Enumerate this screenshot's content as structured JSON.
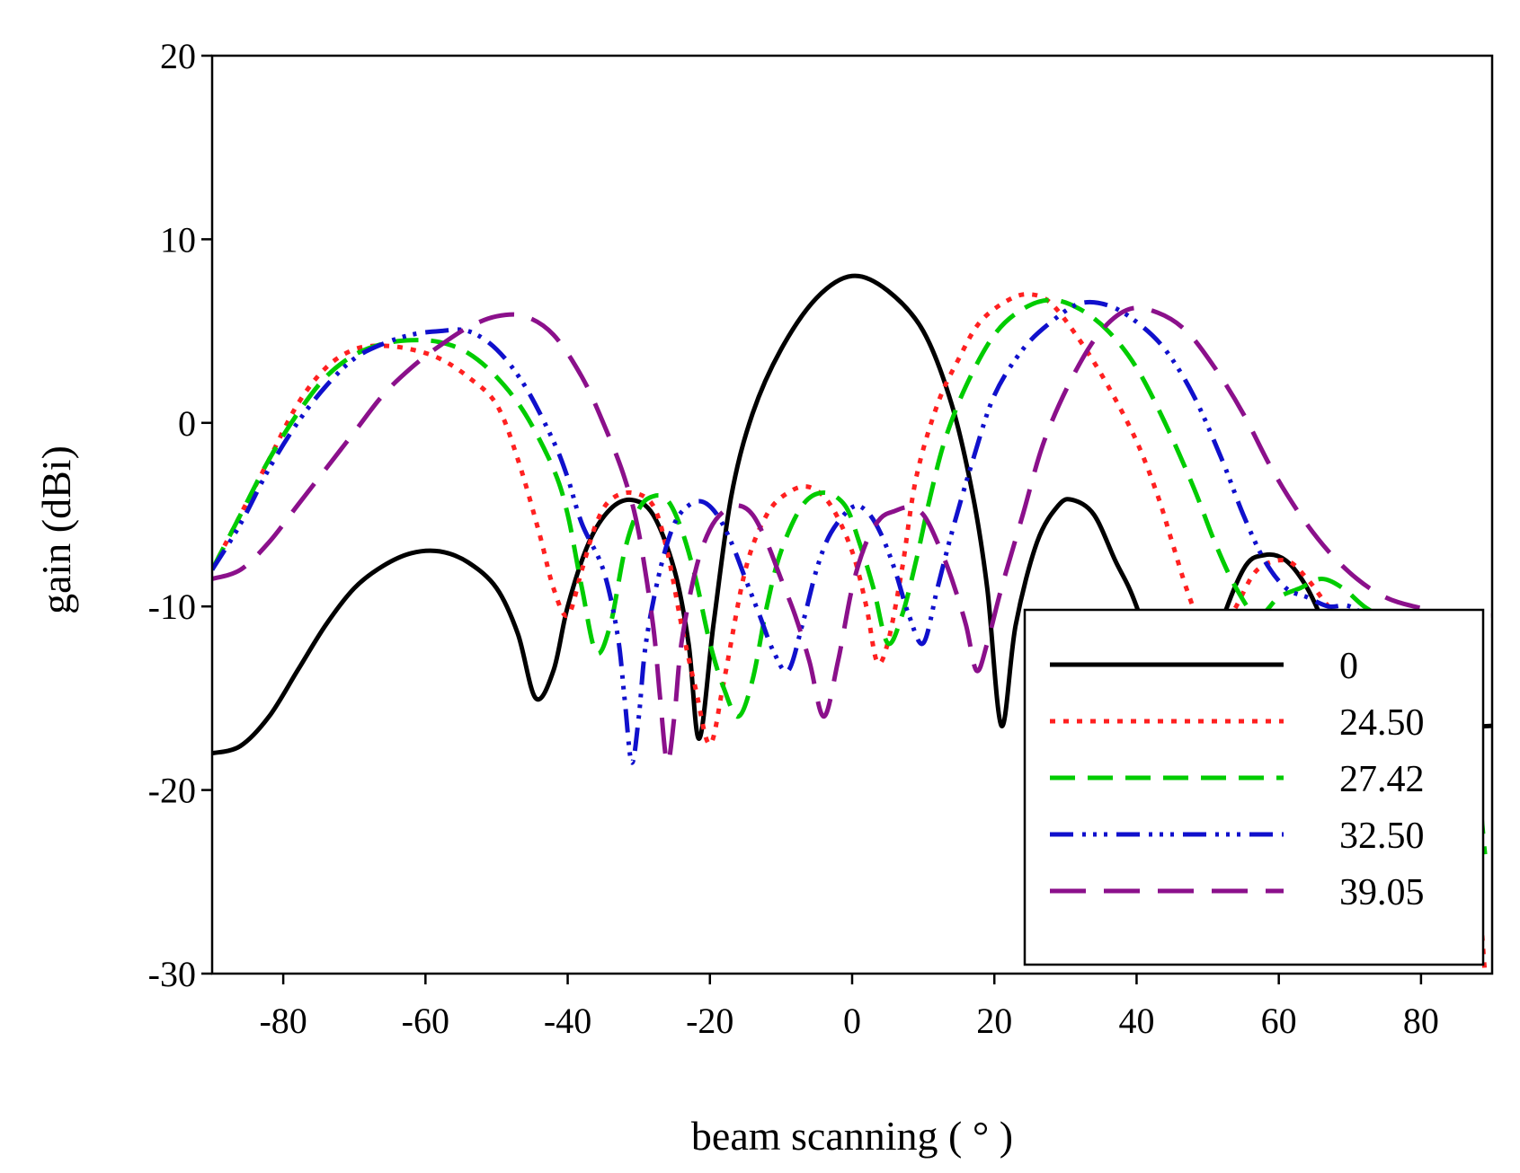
{
  "chart_data": {
    "type": "line",
    "xlabel": "beam scanning ( ° )",
    "ylabel": "gain (dBi)",
    "xlim": [
      -90,
      90
    ],
    "ylim": [
      -30,
      20
    ],
    "xticks": [
      -80,
      -60,
      -40,
      -20,
      0,
      20,
      40,
      60,
      80
    ],
    "yticks": [
      20,
      10,
      0,
      -10,
      -20,
      -30
    ],
    "grid": false,
    "legend_position": "bottom-right",
    "series": [
      {
        "name": "0",
        "color": "#000000",
        "style": "solid",
        "points": [
          [
            -90,
            -18
          ],
          [
            -86,
            -17.6
          ],
          [
            -82,
            -16
          ],
          [
            -78,
            -13.5
          ],
          [
            -74,
            -11
          ],
          [
            -70,
            -9
          ],
          [
            -66,
            -7.8
          ],
          [
            -62,
            -7.1
          ],
          [
            -58,
            -7
          ],
          [
            -54,
            -7.6
          ],
          [
            -50,
            -9
          ],
          [
            -47,
            -11.5
          ],
          [
            -44.5,
            -15
          ],
          [
            -42,
            -13.5
          ],
          [
            -40,
            -10
          ],
          [
            -37,
            -6.5
          ],
          [
            -34,
            -4.7
          ],
          [
            -31,
            -4.2
          ],
          [
            -28,
            -5
          ],
          [
            -25,
            -8
          ],
          [
            -23,
            -12
          ],
          [
            -21.5,
            -17.2
          ],
          [
            -19.5,
            -11
          ],
          [
            -17,
            -4
          ],
          [
            -14,
            0.5
          ],
          [
            -10,
            4
          ],
          [
            -5,
            6.8
          ],
          [
            0,
            8
          ],
          [
            5,
            7.2
          ],
          [
            10,
            5
          ],
          [
            14,
            1
          ],
          [
            17,
            -4
          ],
          [
            19,
            -9
          ],
          [
            21,
            -16.5
          ],
          [
            23,
            -11
          ],
          [
            26,
            -6.5
          ],
          [
            29,
            -4.5
          ],
          [
            31,
            -4.2
          ],
          [
            34,
            -5
          ],
          [
            37,
            -7.5
          ],
          [
            40,
            -10
          ],
          [
            45,
            -16
          ],
          [
            48,
            -17
          ],
          [
            51,
            -12
          ],
          [
            55,
            -8
          ],
          [
            58,
            -7.2
          ],
          [
            61,
            -7.5
          ],
          [
            64,
            -9
          ],
          [
            67,
            -11.5
          ],
          [
            70,
            -14
          ],
          [
            74,
            -16.5
          ],
          [
            78,
            -17
          ],
          [
            82,
            -16.7
          ],
          [
            86,
            -16.6
          ],
          [
            90,
            -16.5
          ]
        ]
      },
      {
        "name": "24.50",
        "color": "#ff2020",
        "style": "dotted",
        "points": [
          [
            -90,
            -8
          ],
          [
            -86,
            -5
          ],
          [
            -82,
            -2
          ],
          [
            -78,
            1
          ],
          [
            -74,
            3
          ],
          [
            -70,
            4
          ],
          [
            -66,
            4.2
          ],
          [
            -62,
            4
          ],
          [
            -58,
            3.5
          ],
          [
            -54,
            2.5
          ],
          [
            -50,
            1
          ],
          [
            -47,
            -2
          ],
          [
            -44,
            -6
          ],
          [
            -42,
            -9
          ],
          [
            -40,
            -10.5
          ],
          [
            -38,
            -8
          ],
          [
            -36,
            -5.5
          ],
          [
            -34,
            -4.2
          ],
          [
            -31,
            -3.8
          ],
          [
            -28,
            -4.5
          ],
          [
            -26,
            -7
          ],
          [
            -24,
            -11
          ],
          [
            -22,
            -14.5
          ],
          [
            -20,
            -17.5
          ],
          [
            -18,
            -14
          ],
          [
            -15,
            -8
          ],
          [
            -12,
            -5
          ],
          [
            -9,
            -3.8
          ],
          [
            -6,
            -3.5
          ],
          [
            -3,
            -4.5
          ],
          [
            0,
            -7
          ],
          [
            2,
            -10
          ],
          [
            3.5,
            -13
          ],
          [
            5,
            -12
          ],
          [
            7,
            -8
          ],
          [
            9,
            -3
          ],
          [
            12,
            1
          ],
          [
            15,
            3.5
          ],
          [
            18,
            5.5
          ],
          [
            22,
            6.7
          ],
          [
            25,
            7
          ],
          [
            28,
            6.5
          ],
          [
            32,
            4.5
          ],
          [
            36,
            2
          ],
          [
            40,
            -1
          ],
          [
            43,
            -4
          ],
          [
            45,
            -6.5
          ],
          [
            47,
            -9
          ],
          [
            49,
            -11
          ],
          [
            51,
            -12
          ],
          [
            54,
            -10
          ],
          [
            57,
            -8
          ],
          [
            61,
            -7.5
          ],
          [
            64,
            -8.5
          ],
          [
            67,
            -10
          ],
          [
            70,
            -11
          ],
          [
            74,
            -12.5
          ],
          [
            78,
            -14
          ],
          [
            82,
            -15
          ],
          [
            86,
            -16.5
          ],
          [
            89,
            -30
          ]
        ]
      },
      {
        "name": "27.42",
        "color": "#00cc00",
        "style": "dashed",
        "points": [
          [
            -90,
            -8
          ],
          [
            -86,
            -5
          ],
          [
            -82,
            -2
          ],
          [
            -78,
            0.5
          ],
          [
            -74,
            2.5
          ],
          [
            -70,
            3.7
          ],
          [
            -66,
            4.3
          ],
          [
            -62,
            4.5
          ],
          [
            -58,
            4.4
          ],
          [
            -54,
            3.8
          ],
          [
            -50,
            2.5
          ],
          [
            -46,
            0.5
          ],
          [
            -42,
            -2.5
          ],
          [
            -40,
            -5
          ],
          [
            -38,
            -9
          ],
          [
            -36,
            -12.5
          ],
          [
            -34,
            -11
          ],
          [
            -32,
            -7
          ],
          [
            -30,
            -4.7
          ],
          [
            -28,
            -4
          ],
          [
            -26,
            -4.2
          ],
          [
            -24,
            -5.8
          ],
          [
            -22,
            -8.5
          ],
          [
            -20,
            -12
          ],
          [
            -18,
            -14.5
          ],
          [
            -16,
            -16
          ],
          [
            -14,
            -14
          ],
          [
            -12,
            -10
          ],
          [
            -10,
            -7
          ],
          [
            -7,
            -4.5
          ],
          [
            -4,
            -3.8
          ],
          [
            -1,
            -4.5
          ],
          [
            1,
            -6.5
          ],
          [
            3,
            -9
          ],
          [
            5,
            -12
          ],
          [
            7,
            -10.5
          ],
          [
            9,
            -7.5
          ],
          [
            11,
            -4
          ],
          [
            13,
            -1
          ],
          [
            16,
            2
          ],
          [
            20,
            4.8
          ],
          [
            24,
            6.2
          ],
          [
            28,
            6.7
          ],
          [
            32,
            6.2
          ],
          [
            36,
            5
          ],
          [
            40,
            3
          ],
          [
            44,
            0
          ],
          [
            48,
            -3.5
          ],
          [
            51,
            -6.5
          ],
          [
            54,
            -9
          ],
          [
            57,
            -10.5
          ],
          [
            60,
            -9.5
          ],
          [
            63,
            -9
          ],
          [
            66,
            -8.5
          ],
          [
            69,
            -9
          ],
          [
            72,
            -10
          ],
          [
            76,
            -11
          ],
          [
            80,
            -12.5
          ],
          [
            84,
            -14.5
          ],
          [
            87,
            -16.5
          ],
          [
            89,
            -23.5
          ]
        ]
      },
      {
        "name": "32.50",
        "color": "#1010cc",
        "style": "dash-dot",
        "points": [
          [
            -90,
            -8
          ],
          [
            -86,
            -5.5
          ],
          [
            -82,
            -2.5
          ],
          [
            -78,
            0
          ],
          [
            -74,
            2
          ],
          [
            -70,
            3.5
          ],
          [
            -66,
            4.3
          ],
          [
            -62,
            4.8
          ],
          [
            -58,
            5
          ],
          [
            -54,
            5
          ],
          [
            -50,
            4
          ],
          [
            -46,
            2
          ],
          [
            -42,
            -1
          ],
          [
            -40,
            -3
          ],
          [
            -38,
            -5.5
          ],
          [
            -35,
            -8
          ],
          [
            -33,
            -11.5
          ],
          [
            -32,
            -15
          ],
          [
            -31,
            -18.5
          ],
          [
            -30,
            -16
          ],
          [
            -29,
            -12
          ],
          [
            -27,
            -8
          ],
          [
            -25,
            -5.5
          ],
          [
            -23,
            -4.5
          ],
          [
            -21,
            -4.3
          ],
          [
            -19,
            -5
          ],
          [
            -17,
            -6.5
          ],
          [
            -15,
            -8.5
          ],
          [
            -13,
            -10.5
          ],
          [
            -11,
            -12.5
          ],
          [
            -9,
            -13.5
          ],
          [
            -7,
            -11
          ],
          [
            -5,
            -8
          ],
          [
            -3,
            -6
          ],
          [
            0,
            -4.6
          ],
          [
            2,
            -4.8
          ],
          [
            4,
            -6
          ],
          [
            6,
            -8
          ],
          [
            8,
            -10.5
          ],
          [
            10,
            -12
          ],
          [
            12,
            -9
          ],
          [
            14,
            -6
          ],
          [
            17,
            -2
          ],
          [
            20,
            1.5
          ],
          [
            24,
            4
          ],
          [
            28,
            5.5
          ],
          [
            32,
            6.5
          ],
          [
            36,
            6.4
          ],
          [
            40,
            5.5
          ],
          [
            44,
            4
          ],
          [
            48,
            1.5
          ],
          [
            52,
            -2
          ],
          [
            55,
            -5
          ],
          [
            58,
            -7.5
          ],
          [
            61,
            -9
          ],
          [
            64,
            -9.5
          ],
          [
            67,
            -10
          ],
          [
            70,
            -10
          ],
          [
            74,
            -11
          ],
          [
            78,
            -12
          ],
          [
            82,
            -13
          ],
          [
            86,
            -14
          ],
          [
            89,
            -14.5
          ]
        ]
      },
      {
        "name": "39.05",
        "color": "#8b108b",
        "style": "long-dash",
        "points": [
          [
            -90,
            -8.5
          ],
          [
            -86,
            -8
          ],
          [
            -82,
            -6.5
          ],
          [
            -78,
            -4.5
          ],
          [
            -74,
            -2.5
          ],
          [
            -70,
            -0.5
          ],
          [
            -66,
            1.5
          ],
          [
            -62,
            3
          ],
          [
            -58,
            4.2
          ],
          [
            -54,
            5.2
          ],
          [
            -50,
            5.8
          ],
          [
            -46,
            5.8
          ],
          [
            -42,
            4.8
          ],
          [
            -38,
            2.5
          ],
          [
            -35,
            0
          ],
          [
            -32,
            -3
          ],
          [
            -30,
            -6
          ],
          [
            -28,
            -11
          ],
          [
            -27,
            -15
          ],
          [
            -26,
            -18.5
          ],
          [
            -25,
            -16
          ],
          [
            -24,
            -12
          ],
          [
            -22,
            -8
          ],
          [
            -20,
            -5.8
          ],
          [
            -18,
            -4.8
          ],
          [
            -16,
            -4.5
          ],
          [
            -14,
            -5
          ],
          [
            -12,
            -6.5
          ],
          [
            -10,
            -8.5
          ],
          [
            -8,
            -10.5
          ],
          [
            -6,
            -13
          ],
          [
            -4,
            -16
          ],
          [
            -2,
            -13
          ],
          [
            0,
            -9
          ],
          [
            2,
            -6.5
          ],
          [
            4,
            -5.2
          ],
          [
            6,
            -4.8
          ],
          [
            8,
            -4.6
          ],
          [
            10,
            -5
          ],
          [
            12,
            -6.5
          ],
          [
            14,
            -8.5
          ],
          [
            16,
            -11
          ],
          [
            17.5,
            -13.5
          ],
          [
            19,
            -12
          ],
          [
            21,
            -9
          ],
          [
            24,
            -5
          ],
          [
            27,
            -1
          ],
          [
            31,
            2.5
          ],
          [
            35,
            5
          ],
          [
            39,
            6.2
          ],
          [
            43,
            6
          ],
          [
            47,
            5
          ],
          [
            51,
            3
          ],
          [
            55,
            0.5
          ],
          [
            59,
            -2.5
          ],
          [
            63,
            -5
          ],
          [
            67,
            -7
          ],
          [
            71,
            -8.5
          ],
          [
            75,
            -9.5
          ],
          [
            79,
            -10
          ],
          [
            83,
            -10.3
          ],
          [
            87,
            -10.5
          ],
          [
            90,
            -10.5
          ]
        ]
      }
    ]
  }
}
